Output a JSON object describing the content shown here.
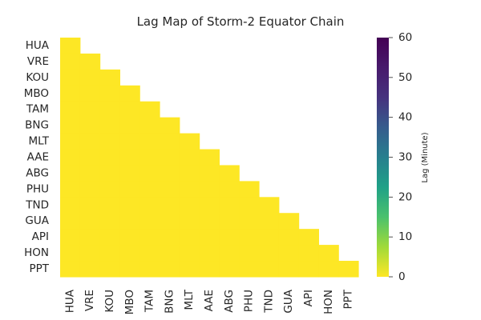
{
  "chart_data": {
    "type": "heatmap",
    "title": "Lag Map of Storm-2 Equator Chain",
    "rows": [
      "HUA",
      "VRE",
      "KOU",
      "MBO",
      "TAM",
      "BNG",
      "MLT",
      "AAE",
      "ABG",
      "PHU",
      "TND",
      "GUA",
      "API",
      "HON",
      "PPT"
    ],
    "columns": [
      "HUA",
      "VRE",
      "KOU",
      "MBO",
      "TAM",
      "BNG",
      "MLT",
      "AAE",
      "ABG",
      "PHU",
      "TND",
      "GUA",
      "API",
      "HON",
      "PPT"
    ],
    "mask": "upper-triangle (cells above the diagonal are blank)",
    "values": [
      [
        0
      ],
      [
        0,
        0
      ],
      [
        0,
        0,
        0
      ],
      [
        0,
        0,
        0,
        0
      ],
      [
        0,
        0,
        0,
        0,
        0
      ],
      [
        0,
        0,
        0,
        0,
        0,
        0
      ],
      [
        0,
        0,
        0,
        0,
        0,
        0,
        0
      ],
      [
        0,
        0,
        0,
        0,
        0,
        0,
        0,
        0
      ],
      [
        0,
        0,
        0,
        0,
        0,
        0,
        0,
        0,
        0
      ],
      [
        0,
        0,
        0,
        0,
        0,
        0,
        0,
        0,
        0,
        0
      ],
      [
        0,
        0,
        0,
        0,
        0,
        0,
        0,
        0,
        0,
        0,
        0
      ],
      [
        0,
        0,
        0,
        0,
        0,
        0,
        0,
        0,
        0,
        0,
        0,
        0
      ],
      [
        0,
        0,
        0,
        0,
        0,
        0,
        0,
        0,
        0,
        0,
        0,
        0,
        0
      ],
      [
        0,
        0,
        0,
        0,
        0,
        0,
        0,
        0,
        0,
        0,
        0,
        0,
        0,
        0
      ],
      [
        0,
        0,
        0,
        0,
        0,
        0,
        0,
        0,
        0,
        0,
        0,
        0,
        0,
        0,
        0
      ]
    ],
    "colormap": "viridis_r",
    "colorbar": {
      "label": "Lag (Minute)",
      "range": [
        0,
        60
      ],
      "ticks": [
        "0",
        "10",
        "20",
        "30",
        "40",
        "50",
        "60"
      ]
    },
    "grid": false,
    "colors": {
      "low": "#fde725",
      "high": "#440154"
    }
  }
}
